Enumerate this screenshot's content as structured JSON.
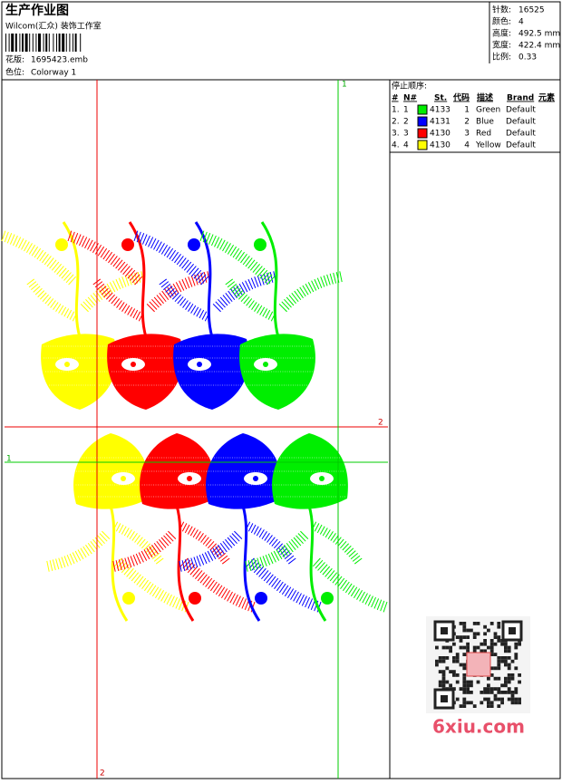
{
  "header": {
    "title": "生产作业图",
    "studio": "Wilcom(汇众) 装饰工作室",
    "design_label": "花版:",
    "design_file": "1695423.emb",
    "colorway_label": "色位:",
    "colorway": "Colorway 1"
  },
  "info": [
    {
      "label": "针数:",
      "value": "16525"
    },
    {
      "label": "颜色:",
      "value": "4"
    },
    {
      "label": "高度:",
      "value": "492.5 mm"
    },
    {
      "label": "宽度:",
      "value": "422.4 mm"
    },
    {
      "label": "比例:",
      "value": "0.33"
    }
  ],
  "stop_sequence": {
    "title": "停止顺序:",
    "columns": [
      "#",
      "N#",
      "St.",
      "代码",
      "描述",
      "Brand",
      "元素"
    ],
    "rows": [
      {
        "index": "1.",
        "n": "1",
        "color": "#00ee00",
        "stitches": "4133",
        "code": "1",
        "description": "Green",
        "brand": "Default"
      },
      {
        "index": "2.",
        "n": "2",
        "color": "#0000ff",
        "stitches": "4131",
        "code": "2",
        "description": "Blue",
        "brand": "Default"
      },
      {
        "index": "3.",
        "n": "3",
        "color": "#ff0000",
        "stitches": "4130",
        "code": "3",
        "description": "Red",
        "brand": "Default"
      },
      {
        "index": "4.",
        "n": "4",
        "color": "#ffff00",
        "stitches": "4130",
        "code": "4",
        "description": "Yellow",
        "brand": "Default"
      }
    ]
  },
  "guides": {
    "top": "1",
    "right": "2",
    "left": "1",
    "bottom": "2"
  },
  "watermark": "6xiu.com"
}
